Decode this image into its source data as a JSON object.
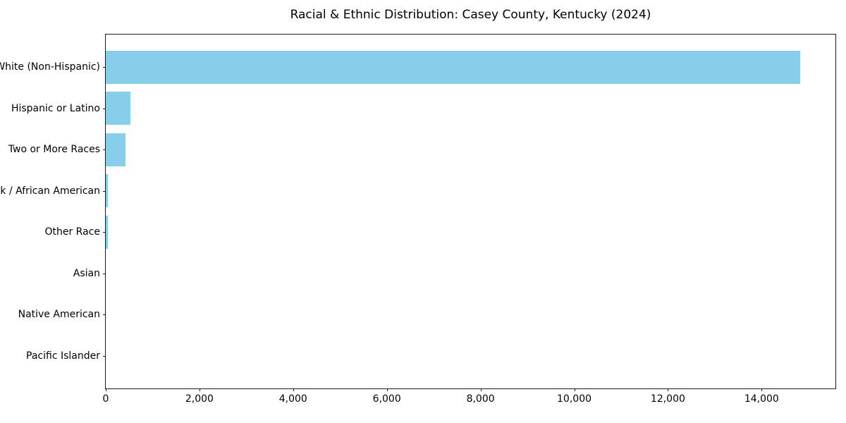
{
  "chart_data": {
    "type": "bar",
    "orientation": "horizontal",
    "title": "Racial & Ethnic Distribution: Casey County, Kentucky (2024)",
    "categories": [
      "White (Non-Hispanic)",
      "Hispanic or Latino",
      "Two or More Races",
      "Black / African American",
      "Other Race",
      "Asian",
      "Native American",
      "Pacific Islander"
    ],
    "values": [
      14825,
      530,
      420,
      50,
      40,
      0,
      0,
      0
    ],
    "bar_color": "#87ceeb",
    "frame_color": "#1a1a1a",
    "text_color": "#000000",
    "xlim": [
      0,
      15575
    ],
    "xticks": [
      0,
      2000,
      4000,
      6000,
      8000,
      10000,
      12000,
      14000
    ],
    "xtick_labels": [
      "0",
      "2,000",
      "4,000",
      "6,000",
      "8,000",
      "10,000",
      "12,000",
      "14,000"
    ],
    "xlabel": "",
    "ylabel": "",
    "grid": false,
    "legend": false
  }
}
